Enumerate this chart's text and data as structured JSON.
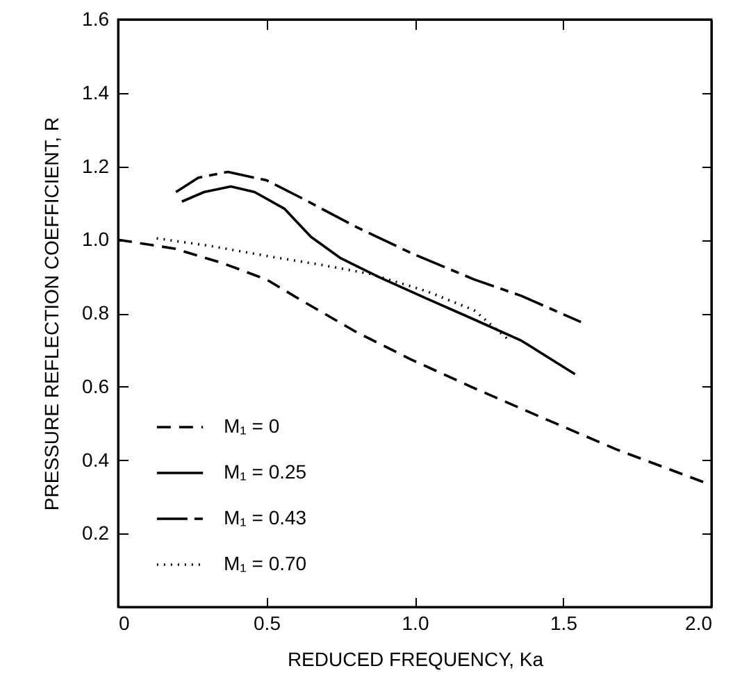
{
  "chart_data": {
    "type": "line",
    "xlabel": "REDUCED FREQUENCY, Ka",
    "ylabel": "PRESSURE REFLECTION COEFFICIENT, R",
    "xlim": [
      0,
      2.0
    ],
    "ylim": [
      0,
      1.6
    ],
    "xticks": [
      {
        "value": 0,
        "label": "0"
      },
      0.5,
      {
        "value": 1,
        "label": "1.0"
      },
      1.5,
      {
        "value": 2,
        "label": "2.0"
      }
    ],
    "yticks": [
      0.2,
      0.4,
      0.6,
      0.8,
      {
        "value": 1,
        "label": "1.0"
      },
      1.2,
      1.4,
      1.6
    ],
    "legend": "bottom left",
    "grid": false,
    "marker": "none",
    "series": [
      {
        "name": "M₁ = 0",
        "color": "#000000",
        "line_style": "dashed",
        "x": [
          0,
          0.19,
          0.35,
          0.5,
          0.62,
          0.8,
          0.99,
          1.2,
          1.44,
          1.68,
          1.98
        ],
        "values": [
          1.0,
          0.976,
          0.937,
          0.892,
          0.834,
          0.75,
          0.673,
          0.596,
          0.512,
          0.429,
          0.338
        ]
      },
      {
        "name": "M₁ = 0.25",
        "color": "#000000",
        "line_style": "solid",
        "x": [
          0.215,
          0.29,
          0.38,
          0.46,
          0.56,
          0.65,
          0.75,
          0.88,
          1.04,
          1.2,
          1.36,
          1.54
        ],
        "values": [
          1.104,
          1.13,
          1.145,
          1.13,
          1.085,
          1.008,
          0.95,
          0.898,
          0.84,
          0.783,
          0.725,
          0.634
        ]
      },
      {
        "name": "M₁ = 0.43",
        "color": "#000000",
        "line_style": "dashdot",
        "x": [
          0.195,
          0.27,
          0.37,
          0.5,
          0.62,
          0.8,
          0.99,
          1.2,
          1.36,
          1.56
        ],
        "values": [
          1.13,
          1.169,
          1.185,
          1.162,
          1.113,
          1.036,
          0.963,
          0.892,
          0.847,
          0.776
        ]
      },
      {
        "name": "M₁ = 0.70",
        "color": "#000000",
        "line_style": "dotted",
        "x": [
          0.13,
          0.32,
          0.5,
          0.69,
          0.85,
          1.04,
          1.2,
          1.32
        ],
        "values": [
          1.004,
          0.982,
          0.956,
          0.931,
          0.907,
          0.86,
          0.808,
          0.725
        ]
      }
    ]
  }
}
